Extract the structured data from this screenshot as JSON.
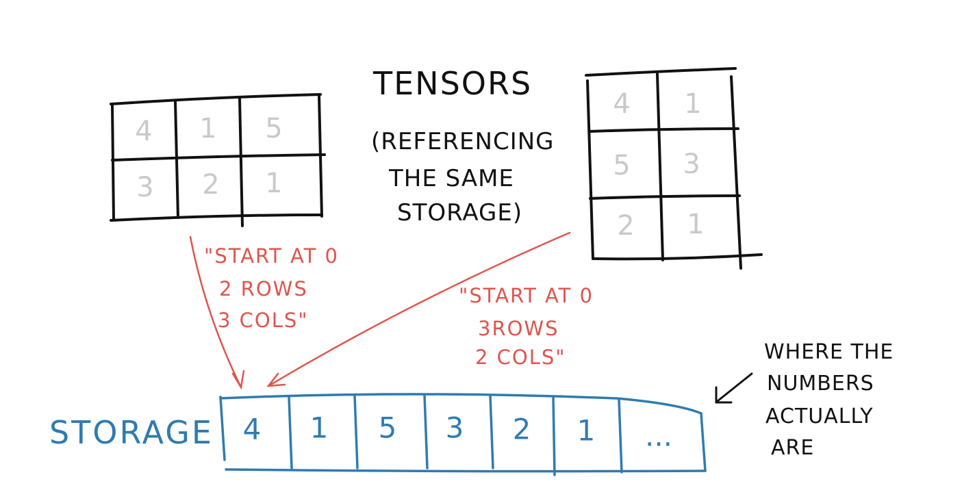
{
  "title": {
    "line1": "TENSORS",
    "line2": "(REFERENCING",
    "line3": "THE SAME",
    "line4": "STORAGE)"
  },
  "tensor_a": {
    "rows": 2,
    "cols": 3,
    "cells": [
      "4",
      "1",
      "5",
      "3",
      "2",
      "1"
    ]
  },
  "tensor_b": {
    "rows": 3,
    "cols": 2,
    "cells": [
      "4",
      "1",
      "5",
      "3",
      "2",
      "1"
    ]
  },
  "annotation_a": {
    "line1": "\"START AT 0",
    "line2": "2 ROWS",
    "line3": "3 COLS\""
  },
  "annotation_b": {
    "line1": "\"START AT 0",
    "line2": "3ROWS",
    "line3": "2 COLS\""
  },
  "storage": {
    "label": "STORAGE",
    "cells": [
      "4",
      "1",
      "5",
      "3",
      "2",
      "1",
      "..."
    ]
  },
  "storage_note": {
    "line1": "WHERE THE",
    "line2": "NUMBERS",
    "line3": "ACTUALLY",
    "line4": "ARE"
  },
  "colors": {
    "ink": "#111111",
    "grey_digits": "#c9c9c9",
    "annotation_red": "#e0544d",
    "storage_blue": "#2f7bb0"
  }
}
